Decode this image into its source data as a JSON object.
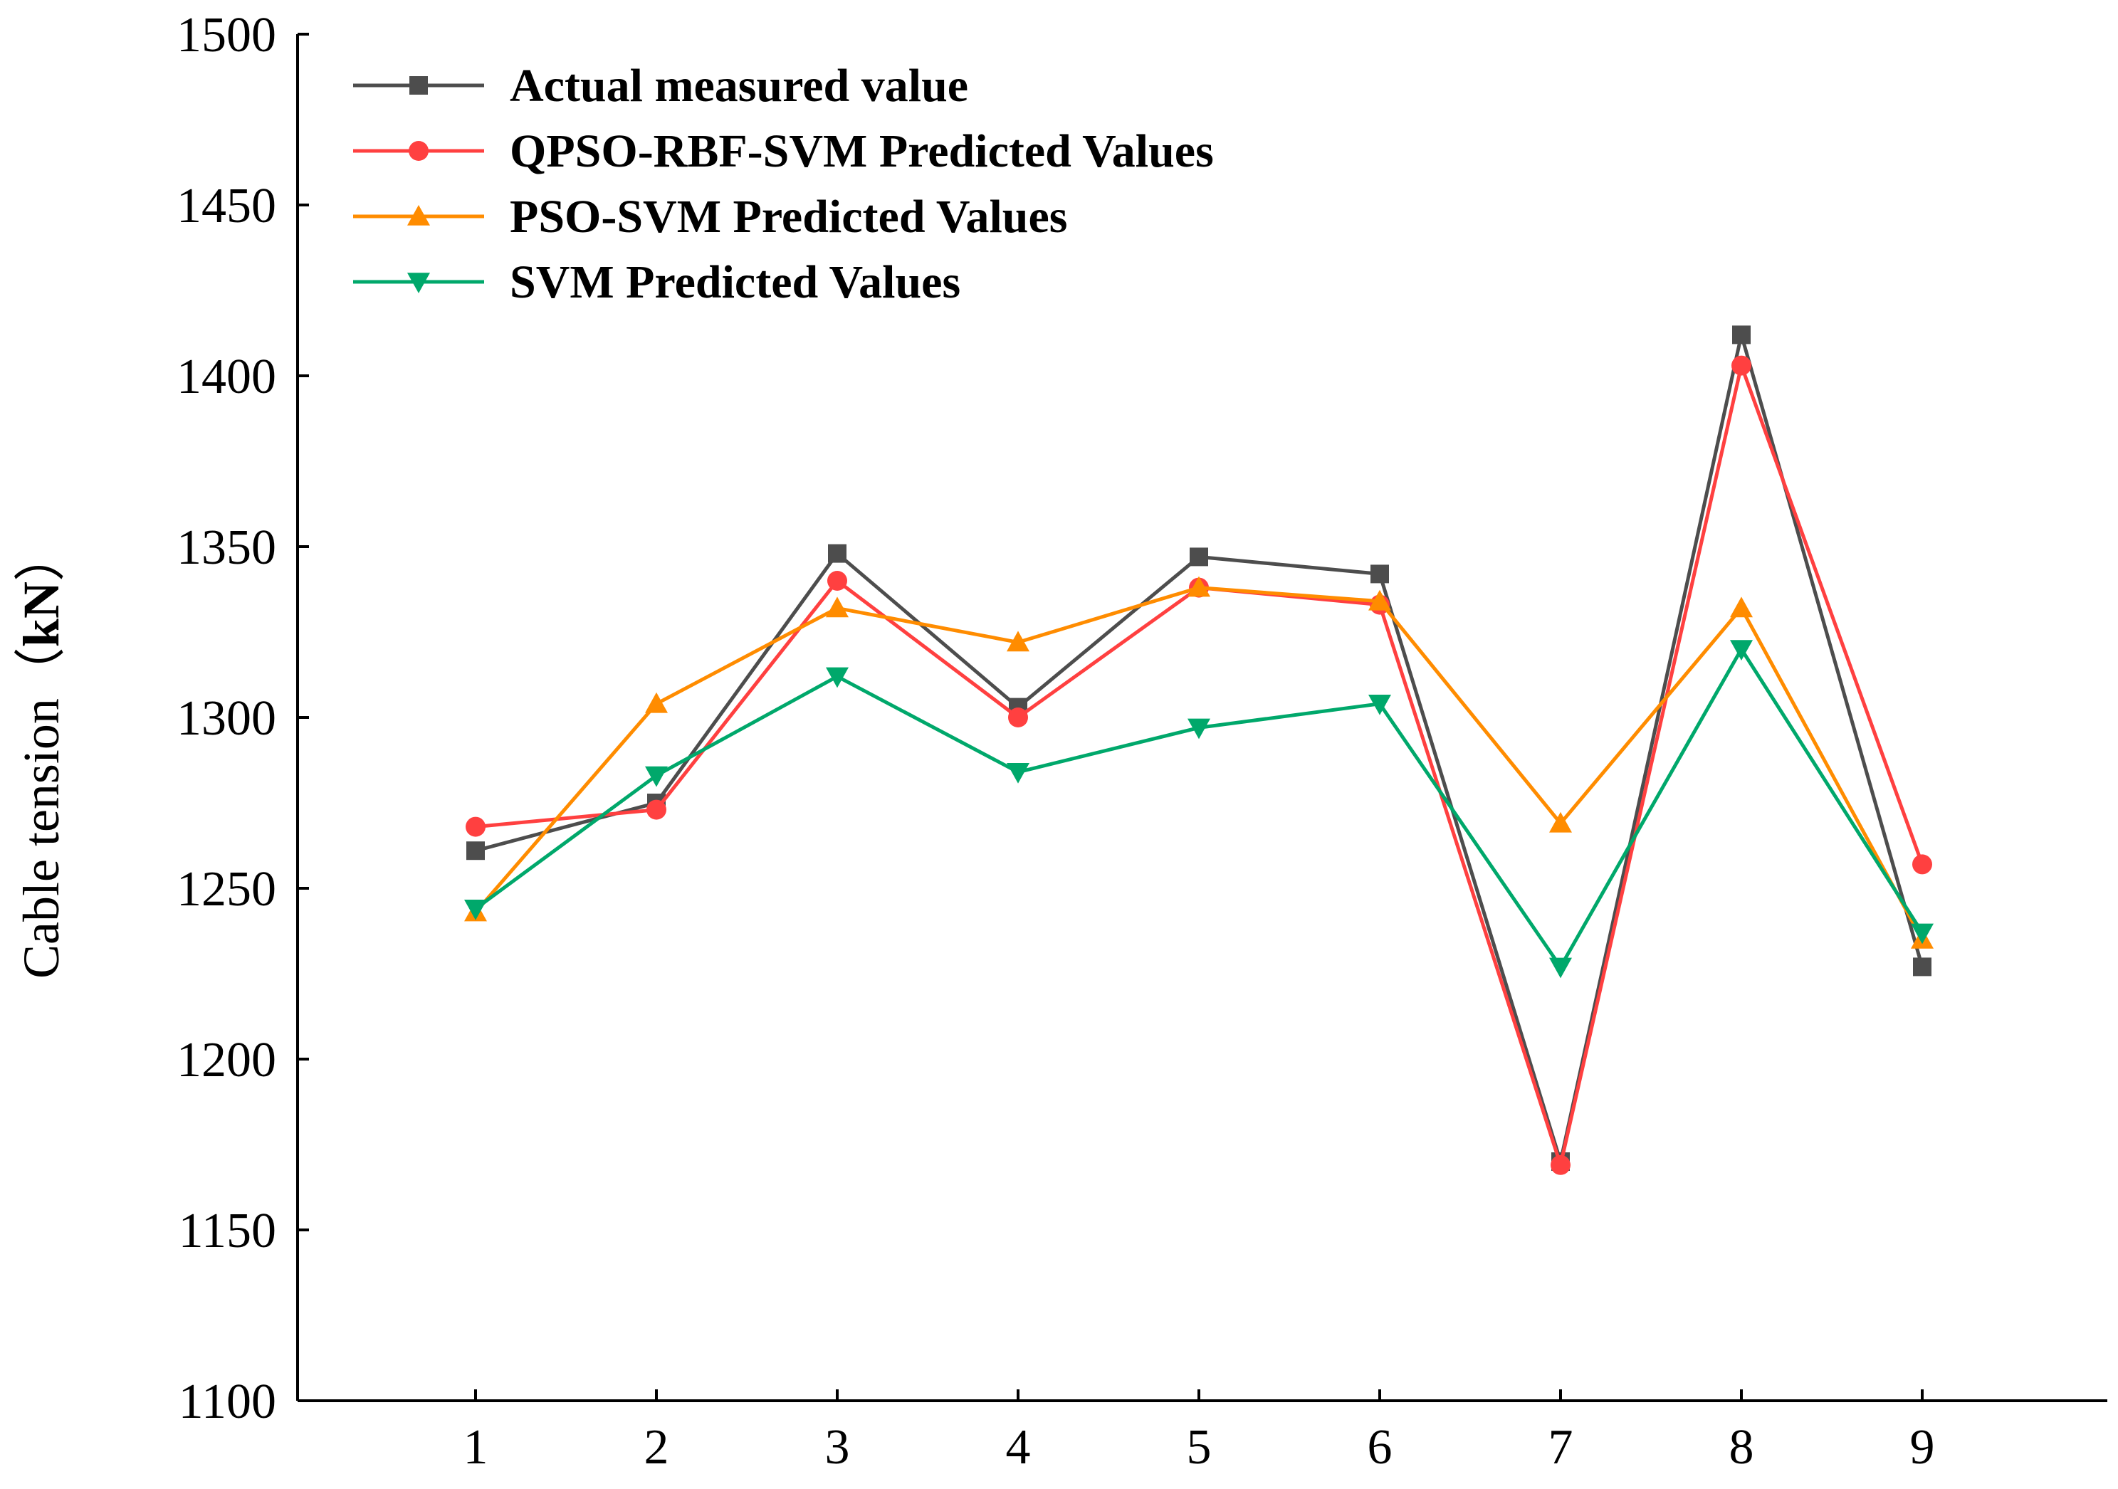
{
  "chart_data": {
    "type": "line",
    "title": "",
    "xlabel": "",
    "ylabel": "Cable tension",
    "ylabel_unit": "kN",
    "x": [
      1,
      2,
      3,
      4,
      5,
      6,
      7,
      8,
      9
    ],
    "x_tick_labels": [
      "1",
      "2",
      "3",
      "4",
      "5",
      "6",
      "7",
      "8",
      "9"
    ],
    "xlim": [
      0,
      10
    ],
    "ylim": [
      1100,
      1500
    ],
    "y_ticks": [
      1100,
      1150,
      1200,
      1250,
      1300,
      1350,
      1400,
      1450,
      1500
    ],
    "y_tick_labels": [
      "1100",
      "1150",
      "1200",
      "1250",
      "1300",
      "1350",
      "1400",
      "1450",
      "1500"
    ],
    "grid": false,
    "legend_position": "top-left",
    "series": [
      {
        "name": "Actual measured value",
        "color": "#4d4d4d",
        "marker": "square",
        "values": [
          1261,
          1275,
          1348,
          1303,
          1347,
          1342,
          1170,
          1412,
          1227
        ]
      },
      {
        "name": "QPSO-RBF-SVM Predicted Values",
        "color": "#ff4040",
        "marker": "circle",
        "values": [
          1268,
          1273,
          1340,
          1300,
          1338,
          1333,
          1169,
          1403,
          1257
        ]
      },
      {
        "name": "PSO-SVM Predicted Values",
        "color": "#ff8c00",
        "marker": "triangle-up",
        "values": [
          1243,
          1304,
          1332,
          1322,
          1338,
          1334,
          1269,
          1332,
          1235
        ]
      },
      {
        "name": "SVM Predicted Values",
        "color": "#00a86b",
        "marker": "triangle-down",
        "values": [
          1244,
          1283,
          1312,
          1284,
          1297,
          1304,
          1227,
          1320,
          1237
        ]
      }
    ]
  }
}
